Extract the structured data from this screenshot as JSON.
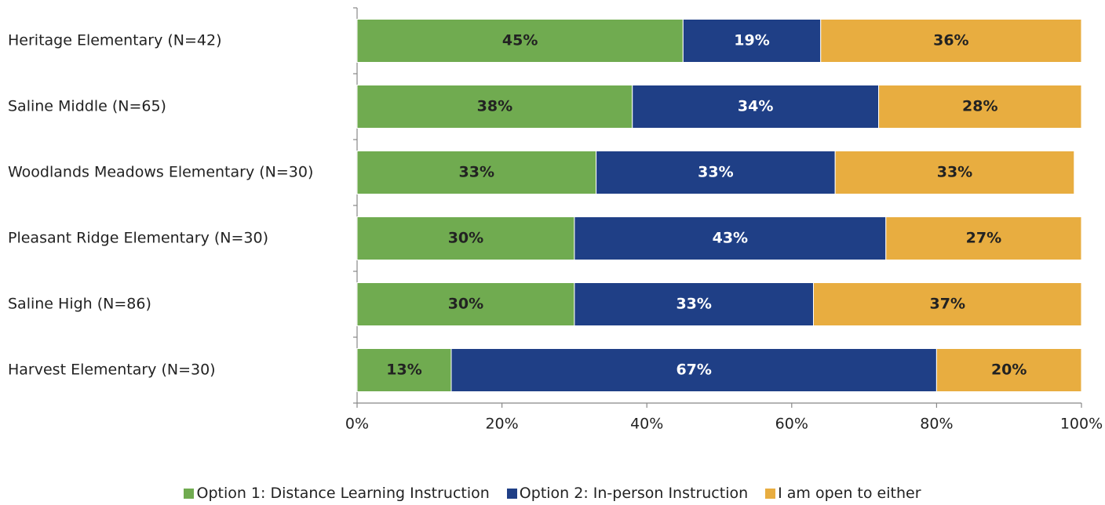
{
  "chart_data": {
    "type": "stacked-bar-horizontal",
    "categories": [
      "Heritage Elementary (N=42)",
      "Saline Middle (N=65)",
      "Woodlands Meadows Elementary (N=30)",
      "Pleasant Ridge Elementary (N=30)",
      "Saline High (N=86)",
      "Harvest Elementary (N=30)"
    ],
    "series": [
      {
        "name": "Option 1: Distance Learning Instruction",
        "color": "#70ab50",
        "values": [
          45,
          38,
          33,
          30,
          30,
          13
        ],
        "value_labels": [
          "45%",
          "38%",
          "33%",
          "30%",
          "30%",
          "13%"
        ]
      },
      {
        "name": "Option 2: In-person Instruction",
        "color": "#1f3f86",
        "values": [
          19,
          34,
          33,
          43,
          33,
          67
        ],
        "value_labels": [
          "19%",
          "34%",
          "33%",
          "43%",
          "33%",
          "67%"
        ]
      },
      {
        "name": "I am open to either",
        "color": "#e8ad40",
        "values": [
          36,
          28,
          33,
          27,
          37,
          20
        ],
        "value_labels": [
          "36%",
          "28%",
          "33%",
          "27%",
          "37%",
          "20%"
        ]
      }
    ],
    "xlim": [
      0,
      100
    ],
    "xticks": [
      {
        "value": 0,
        "label": "0%"
      },
      {
        "value": 20,
        "label": "20%"
      },
      {
        "value": 40,
        "label": "40%"
      },
      {
        "value": 60,
        "label": "60%"
      },
      {
        "value": 80,
        "label": "80%"
      },
      {
        "value": 100,
        "label": "100%"
      }
    ],
    "legend": "bottom"
  }
}
